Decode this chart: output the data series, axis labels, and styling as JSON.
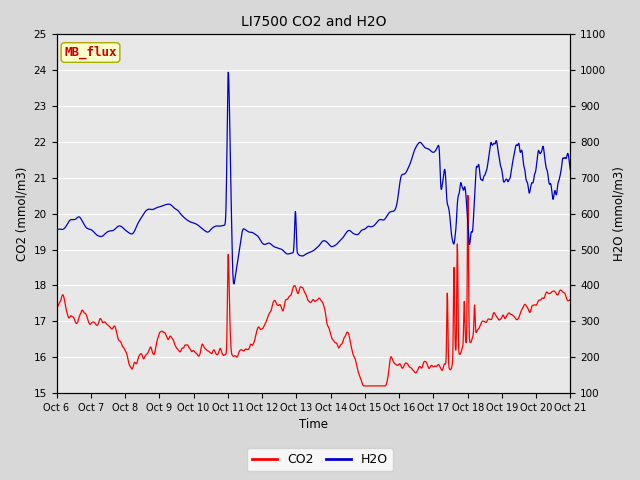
{
  "title": "LI7500 CO2 and H2O",
  "xlabel": "Time",
  "ylabel_left": "CO2 (mmol/m3)",
  "ylabel_right": "H2O (mmol/m3)",
  "xlim": [
    0,
    15
  ],
  "ylim_left": [
    15.0,
    25.0
  ],
  "ylim_right": [
    100,
    1100
  ],
  "yticks_left": [
    15.0,
    16.0,
    17.0,
    18.0,
    19.0,
    20.0,
    21.0,
    22.0,
    23.0,
    24.0,
    25.0
  ],
  "yticks_right": [
    100,
    200,
    300,
    400,
    500,
    600,
    700,
    800,
    900,
    1000,
    1100
  ],
  "xtick_labels": [
    "Oct 6",
    "Oct 7",
    "Oct 8",
    "Oct 9",
    "Oct 10",
    "Oct 11",
    "Oct 12",
    "Oct 13",
    "Oct 14",
    "Oct 15",
    "Oct 16",
    "Oct 17",
    "Oct 18",
    "Oct 19",
    "Oct 20",
    "Oct 21"
  ],
  "co2_color": "#ff0000",
  "h2o_color": "#0000cc",
  "bg_color": "#e8e8e8",
  "grid_color": "#ffffff",
  "fig_bg": "#d8d8d8",
  "annotation_text": "MB_flux",
  "annotation_bg": "#ffffcc",
  "annotation_border": "#aaaa00",
  "annotation_fg": "#cc0000",
  "linewidth": 0.9
}
